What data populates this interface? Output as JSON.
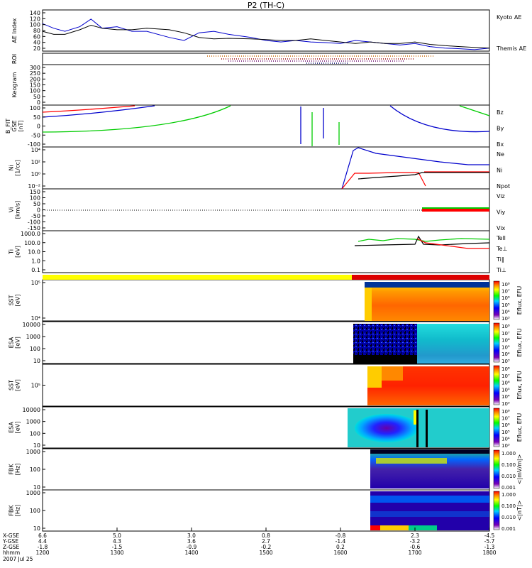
{
  "chart_data": {
    "type": "line",
    "title": "P2 (TH-C)",
    "date_label": "2007 Jul 25",
    "colors": {
      "kyoto": "#0000cc",
      "themis": "#000000",
      "red": "#ff0000",
      "green": "#00cc00",
      "blue": "#0000cc",
      "bar_yellow": "#ffff00",
      "bar_red": "#dd0000"
    },
    "x_axis": {
      "range": [
        1200,
        1800
      ],
      "time_ticks": [
        "1200",
        "1300",
        "1400",
        "1500",
        "1600",
        "1700",
        "1800"
      ],
      "time_values": [
        1200,
        1300,
        1400,
        1500,
        1600,
        1700,
        1800
      ],
      "row_labels": [
        "X-GSE",
        "Y-GSE",
        "Z-GSE",
        "hhmm"
      ],
      "row_values": [
        [
          "6.6",
          "5.0",
          "3.0",
          "0.8",
          "-0.8",
          "2.3",
          "-4.5"
        ],
        [
          "4.4",
          "4.3",
          "3.6",
          "2.7",
          "-1.4",
          "-3.2",
          "-5.7"
        ],
        [
          "-1.8",
          "-1.5",
          "-0.9",
          "-0.2",
          "0.2",
          "-0.6",
          "-1.3"
        ]
      ]
    },
    "panels": [
      {
        "id": "ae",
        "ylabel": "AE Index",
        "ticks": [
          "140",
          "120",
          "100",
          "80",
          "60",
          "40",
          "20"
        ],
        "legend": [
          "Kyoto AE",
          "Themis AE"
        ],
        "series": [
          {
            "name": "Kyoto AE",
            "x": [
              1200,
              1215,
              1230,
              1250,
              1265,
              1280,
              1300,
              1320,
              1340,
              1370,
              1390,
              1410,
              1430,
              1450,
              1480,
              1500,
              1520,
              1540,
              1560,
              1580,
              1600,
              1620,
              1640,
              1660,
              1680,
              1700,
              1720,
              1740,
              1760,
              1780,
              1800
            ],
            "y": [
              100,
              85,
              75,
              90,
              115,
              85,
              90,
              75,
              75,
              55,
              45,
              70,
              75,
              65,
              55,
              45,
              40,
              45,
              40,
              38,
              35,
              45,
              40,
              35,
              30,
              35,
              25,
              20,
              18,
              15,
              20
            ]
          },
          {
            "name": "Themis AE",
            "x": [
              1200,
              1215,
              1230,
              1250,
              1265,
              1280,
              1300,
              1320,
              1340,
              1370,
              1390,
              1410,
              1430,
              1450,
              1480,
              1500,
              1520,
              1540,
              1560,
              1580,
              1600,
              1620,
              1640,
              1660,
              1680,
              1700,
              1720,
              1740,
              1760,
              1780,
              1800
            ],
            "y": [
              75,
              65,
              65,
              80,
              95,
              85,
              80,
              80,
              85,
              80,
              70,
              55,
              50,
              52,
              50,
              48,
              45,
              45,
              50,
              45,
              40,
              35,
              40,
              35,
              35,
              40,
              32,
              28,
              25,
              22,
              20
            ]
          }
        ]
      },
      {
        "id": "roi",
        "ylabel": "ROI",
        "ticks": []
      },
      {
        "id": "keogram",
        "ylabel": "Keogram",
        "ticks": [
          "300",
          "250",
          "200",
          "150",
          "100",
          "50",
          "0"
        ]
      },
      {
        "id": "bfit",
        "ylabel": "B_FIT\nGSE\n[nT]",
        "ticks": [
          "100",
          "50",
          "0",
          "-50",
          "-100"
        ],
        "legend": [
          "Bz",
          "By",
          "Bx"
        ]
      },
      {
        "id": "ni",
        "ylabel": "Ni\n[1/cc]",
        "ticks": [
          "10⁴",
          "10²",
          "10⁰",
          "10⁻²"
        ],
        "legend": [
          "Ne",
          "Ni",
          "Npot"
        ]
      },
      {
        "id": "vi",
        "ylabel": "Vi\n[km/s]",
        "ticks": [
          "150",
          "100",
          "50",
          "0",
          "-50",
          "-100",
          "-150"
        ],
        "legend": [
          "Viz",
          "Viy",
          "Vix"
        ]
      },
      {
        "id": "ti",
        "ylabel": "Ti\n[eV]",
        "ticks": [
          "1000.0",
          "100.0",
          "10.0",
          "1.0",
          "0.1"
        ],
        "legend": [
          "Tell",
          "Te⊥",
          "Ti∥",
          "Ti⊥"
        ]
      },
      {
        "id": "sst_i",
        "ylabel": "SST\n[eV]",
        "ticks": [
          "10⁵",
          "10⁴"
        ],
        "colorbar": [
          "10⁸",
          "10⁷",
          "10⁶",
          "10⁵",
          "10⁴",
          "10³"
        ],
        "cbar_label": "Eflux, EFU"
      },
      {
        "id": "esa_i",
        "ylabel": "ESA\n[eV]",
        "ticks": [
          "10000",
          "1000",
          "100",
          "10"
        ],
        "colorbar": [
          "10⁸",
          "10⁷",
          "10⁶",
          "10⁵",
          "10⁴",
          "10³"
        ],
        "cbar_label": "Eflux, EFU"
      },
      {
        "id": "sst_e",
        "ylabel": "SST\n[eV]",
        "ticks": [
          "10⁵"
        ],
        "colorbar": [
          "10⁸",
          "10⁷",
          "10⁶",
          "10⁵",
          "10⁴",
          "10³"
        ],
        "cbar_label": "Eflux, EFU"
      },
      {
        "id": "esa_e",
        "ylabel": "ESA\n[eV]",
        "ticks": [
          "10000",
          "1000",
          "100",
          "10"
        ],
        "colorbar": [
          "10⁸",
          "10⁷",
          "10⁶",
          "10⁵",
          "10⁴",
          "10³"
        ],
        "cbar_label": "Eflux, EFU"
      },
      {
        "id": "fbk_e",
        "ylabel": "FBK\n[Hz]",
        "ticks": [
          "1000",
          "100",
          "10"
        ],
        "colorbar": [
          "1.000",
          "0.100",
          "0.010",
          "0.001"
        ],
        "cbar_label": "<|mV/m|>"
      },
      {
        "id": "fbk_b",
        "ylabel": "FBK\n[Hz]",
        "ticks": [
          "1000",
          "100",
          "10"
        ],
        "colorbar": [
          "1.000",
          "0.100",
          "0.010",
          "0.001"
        ],
        "cbar_label": "<|nT|>"
      }
    ]
  }
}
